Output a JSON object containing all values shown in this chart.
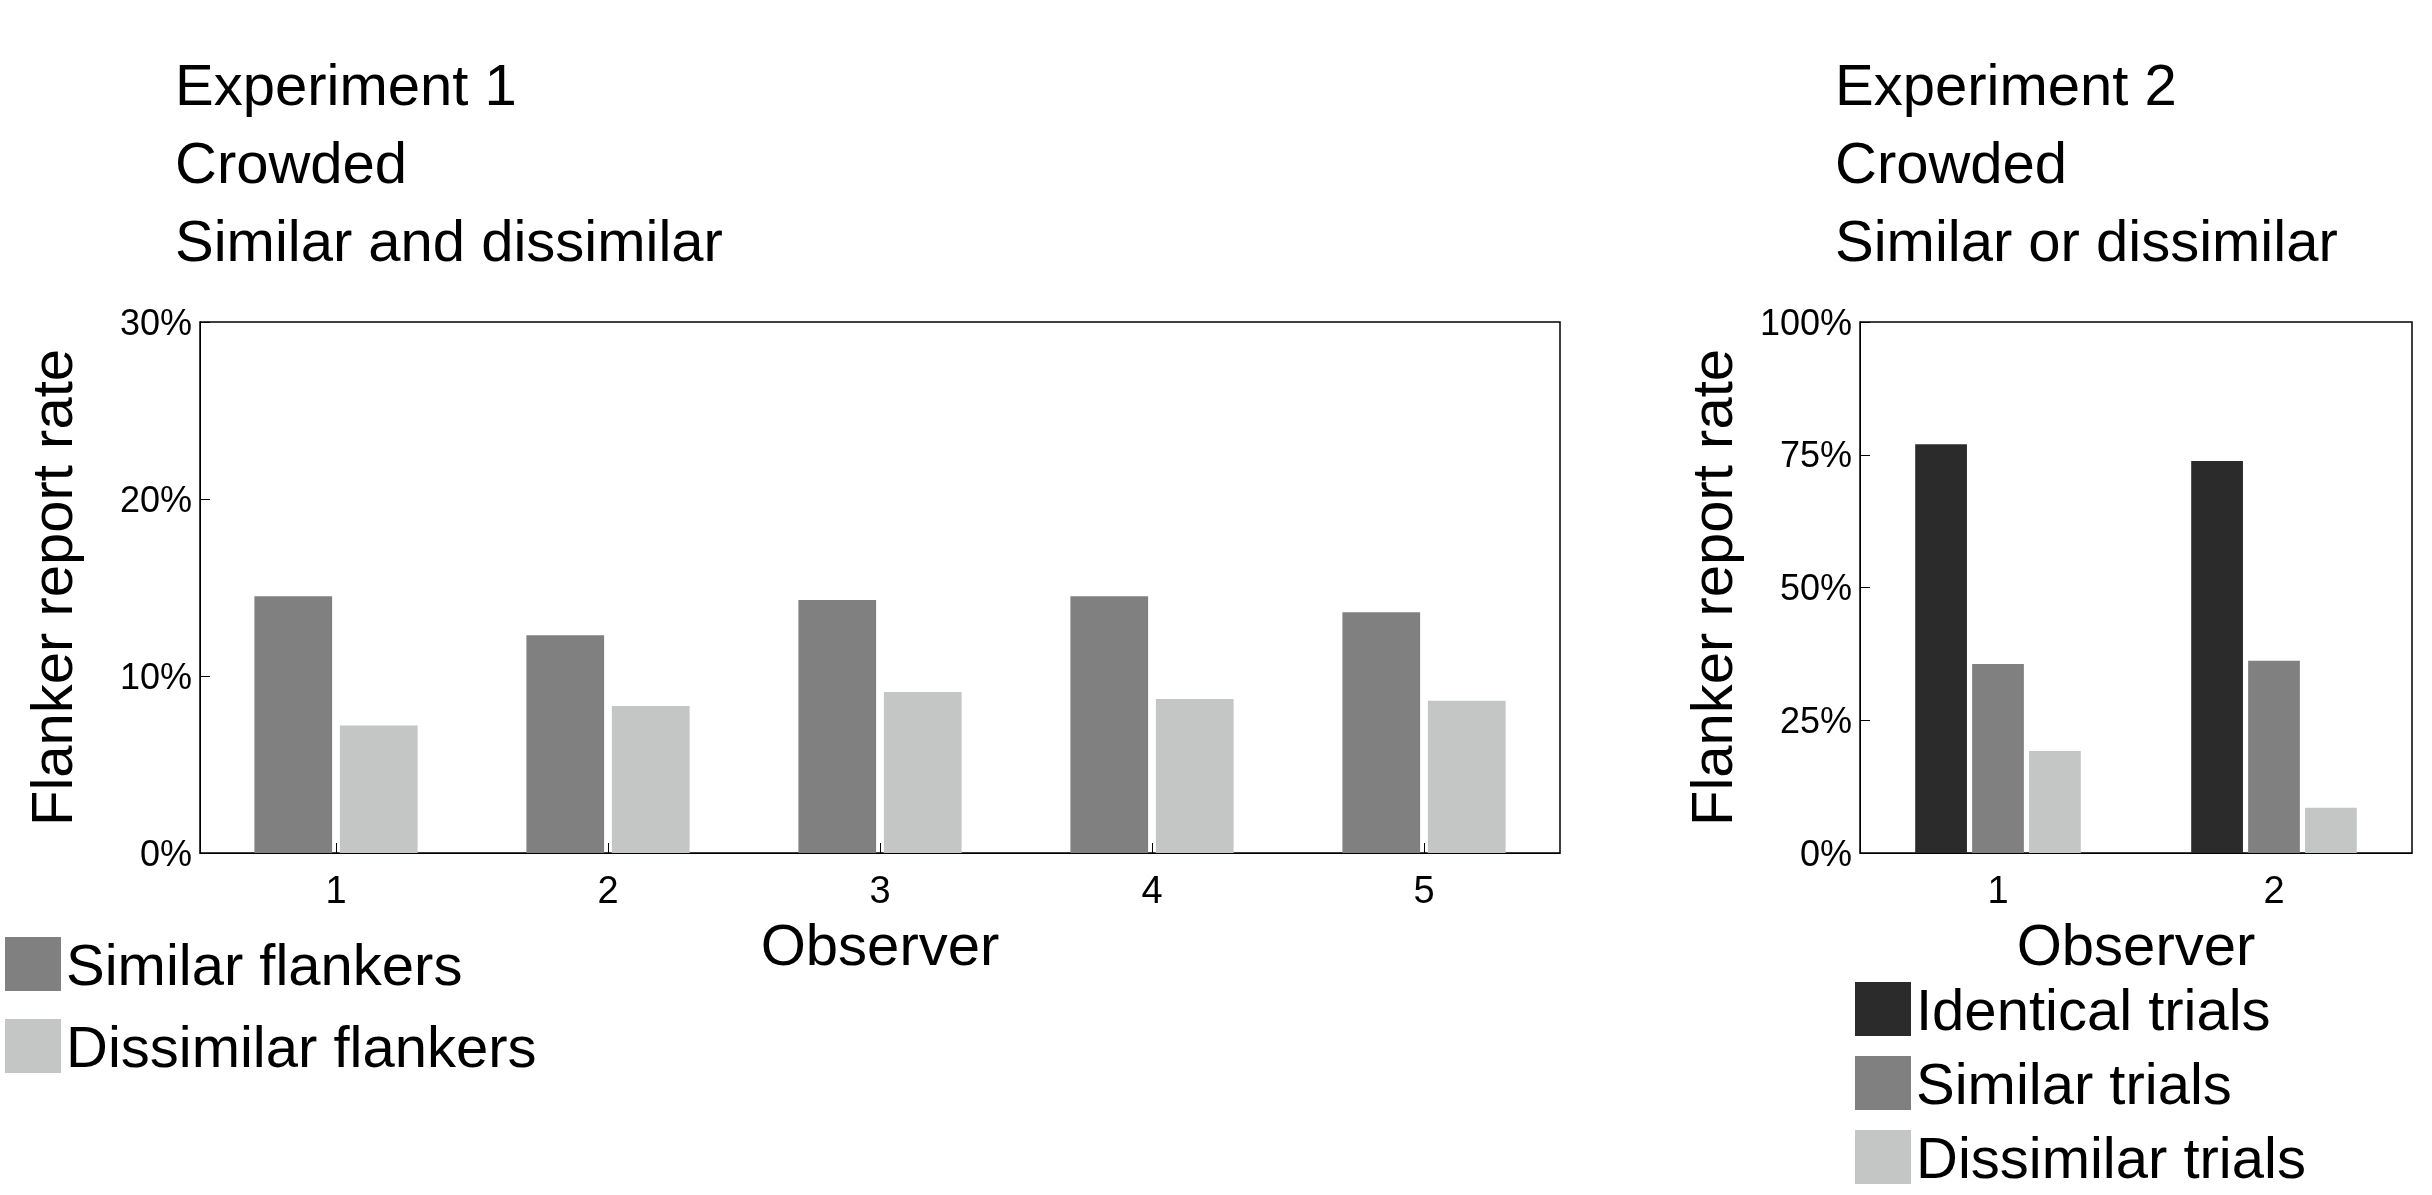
{
  "chart_data": [
    {
      "type": "bar",
      "title": "Experiment 1\nCrowded\nSimilar and dissimilar",
      "xlabel": "Observer",
      "ylabel": "Flanker report rate",
      "categories": [
        "1",
        "2",
        "3",
        "4",
        "5"
      ],
      "series": [
        {
          "name": "Similar flankers",
          "color": "#808080",
          "values": [
            14.5,
            12.3,
            14.3,
            14.5,
            13.6
          ]
        },
        {
          "name": "Dissimilar flankers",
          "color": "#c4c6c5",
          "values": [
            7.2,
            8.3,
            9.1,
            8.7,
            8.6
          ]
        }
      ],
      "ylim": [
        0,
        30
      ],
      "yticks": [
        {
          "value": 0,
          "label": "0%"
        },
        {
          "value": 10,
          "label": "10%"
        },
        {
          "value": 20,
          "label": "20%"
        },
        {
          "value": 30,
          "label": "30%"
        }
      ],
      "grid": false,
      "legend": "bottom left"
    },
    {
      "type": "bar",
      "title": "Experiment 2\nCrowded\nSimilar or dissimilar",
      "xlabel": "Observer",
      "ylabel": "Flanker report rate",
      "categories": [
        "1",
        "2"
      ],
      "series": [
        {
          "name": "Identical trials",
          "color": "#2b2b2b",
          "values": [
            77,
            73.8
          ]
        },
        {
          "name": "Similar trials",
          "color": "#808080",
          "values": [
            35.6,
            36.2
          ]
        },
        {
          "name": "Dissimilar trials",
          "color": "#c4c6c5",
          "values": [
            19.2,
            8.5
          ]
        }
      ],
      "ylim": [
        0,
        100
      ],
      "yticks": [
        {
          "value": 0,
          "label": "0%"
        },
        {
          "value": 25,
          "label": "25%"
        },
        {
          "value": 50,
          "label": "50%"
        },
        {
          "value": 75,
          "label": "75%"
        },
        {
          "value": 100,
          "label": "100%"
        }
      ],
      "grid": false,
      "legend": "bottom left"
    }
  ]
}
